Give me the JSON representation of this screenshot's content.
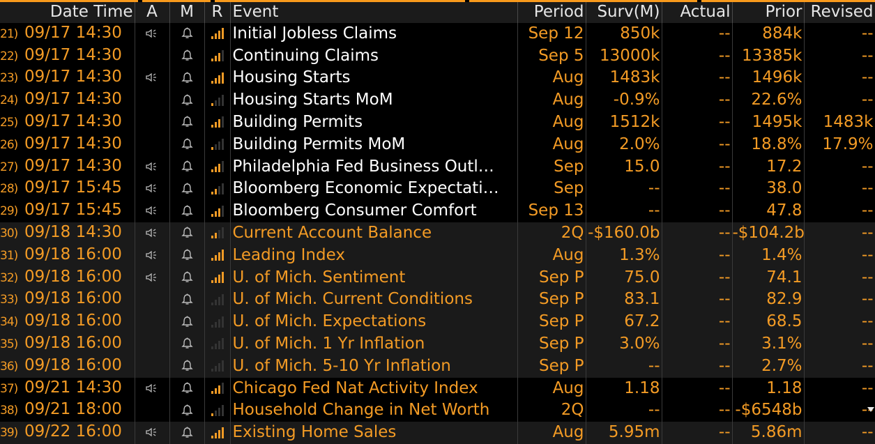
{
  "columns": [
    "Date Time",
    "A",
    "M",
    "R",
    "Event",
    "Period",
    "Surv(M)",
    "Actual",
    "Prior",
    "Revised"
  ],
  "rows": [
    {
      "idx": "21)",
      "date": "09/17 14:30",
      "alert": true,
      "rel": 4,
      "event": "Initial Jobless Claims",
      "period": "Sep 12",
      "surv": "850k",
      "actual": "--",
      "prior": "884k",
      "revised": "--",
      "group": 1
    },
    {
      "idx": "22)",
      "date": "09/17 14:30",
      "alert": false,
      "rel": 3,
      "event": "Continuing Claims",
      "period": "Sep 5",
      "surv": "13000k",
      "actual": "--",
      "prior": "13385k",
      "revised": "--",
      "group": 1
    },
    {
      "idx": "23)",
      "date": "09/17 14:30",
      "alert": true,
      "rel": 4,
      "event": "Housing Starts",
      "period": "Aug",
      "surv": "1483k",
      "actual": "--",
      "prior": "1496k",
      "revised": "--",
      "group": 1
    },
    {
      "idx": "24)",
      "date": "09/17 14:30",
      "alert": false,
      "rel": 1,
      "event": "Housing Starts MoM",
      "period": "Aug",
      "surv": "-0.9%",
      "actual": "--",
      "prior": "22.6%",
      "revised": "--",
      "group": 1
    },
    {
      "idx": "25)",
      "date": "09/17 14:30",
      "alert": false,
      "rel": 3,
      "event": "Building Permits",
      "period": "Aug",
      "surv": "1512k",
      "actual": "--",
      "prior": "1495k",
      "revised": "1483k",
      "group": 1
    },
    {
      "idx": "26)",
      "date": "09/17 14:30",
      "alert": false,
      "rel": 1,
      "event": "Building Permits MoM",
      "period": "Aug",
      "surv": "2.0%",
      "actual": "--",
      "prior": "18.8%",
      "revised": "17.9%",
      "group": 1
    },
    {
      "idx": "27)",
      "date": "09/17 14:30",
      "alert": true,
      "rel": 3,
      "event": "Philadelphia Fed Business Outl…",
      "period": "Sep",
      "surv": "15.0",
      "actual": "--",
      "prior": "17.2",
      "revised": "--",
      "group": 1
    },
    {
      "idx": "28)",
      "date": "09/17 15:45",
      "alert": true,
      "rel": 2,
      "event": "Bloomberg Economic Expectati…",
      "period": "Sep",
      "surv": "--",
      "actual": "--",
      "prior": "38.0",
      "revised": "--",
      "group": 1
    },
    {
      "idx": "29)",
      "date": "09/17 15:45",
      "alert": true,
      "rel": 3,
      "event": "Bloomberg Consumer Comfort",
      "period": "Sep 13",
      "surv": "--",
      "actual": "--",
      "prior": "47.8",
      "revised": "--",
      "group": 1
    },
    {
      "idx": "30)",
      "date": "09/18 14:30",
      "alert": true,
      "rel": 2,
      "event": "Current Account Balance",
      "period": "2Q",
      "surv": "-$160.0b",
      "actual": "--",
      "prior": "-$104.2b",
      "revised": "--",
      "group": 2
    },
    {
      "idx": "31)",
      "date": "09/18 16:00",
      "alert": true,
      "rel": 4,
      "event": "Leading Index",
      "period": "Aug",
      "surv": "1.3%",
      "actual": "--",
      "prior": "1.4%",
      "revised": "--",
      "group": 2
    },
    {
      "idx": "32)",
      "date": "09/18 16:00",
      "alert": true,
      "rel": 4,
      "event": "U. of Mich. Sentiment",
      "period": "Sep P",
      "surv": "75.0",
      "actual": "--",
      "prior": "74.1",
      "revised": "--",
      "group": 2
    },
    {
      "idx": "33)",
      "date": "09/18 16:00",
      "alert": false,
      "rel": 0,
      "event": "U. of Mich. Current Conditions",
      "period": "Sep P",
      "surv": "83.1",
      "actual": "--",
      "prior": "82.9",
      "revised": "--",
      "group": 2
    },
    {
      "idx": "34)",
      "date": "09/18 16:00",
      "alert": false,
      "rel": 0,
      "event": "U. of Mich. Expectations",
      "period": "Sep P",
      "surv": "67.2",
      "actual": "--",
      "prior": "68.5",
      "revised": "--",
      "group": 2
    },
    {
      "idx": "35)",
      "date": "09/18 16:00",
      "alert": false,
      "rel": 0,
      "event": "U. of Mich. 1 Yr Inflation",
      "period": "Sep P",
      "surv": "3.0%",
      "actual": "--",
      "prior": "3.1%",
      "revised": "--",
      "group": 2
    },
    {
      "idx": "36)",
      "date": "09/18 16:00",
      "alert": false,
      "rel": 0,
      "event": "U. of Mich. 5-10 Yr Inflation",
      "period": "Sep P",
      "surv": "--",
      "actual": "--",
      "prior": "2.7%",
      "revised": "--",
      "group": 2
    },
    {
      "idx": "37)",
      "date": "09/21 14:30",
      "alert": true,
      "rel": 3,
      "event": "Chicago Fed Nat Activity Index",
      "period": "Aug",
      "surv": "1.18",
      "actual": "--",
      "prior": "1.18",
      "revised": "--",
      "group": 3
    },
    {
      "idx": "38)",
      "date": "09/21 18:00",
      "alert": false,
      "rel": 1,
      "event": "Household Change in Net Worth",
      "period": "2Q",
      "surv": "--",
      "actual": "--",
      "prior": "-$6548b",
      "revised": "--",
      "group": 3
    },
    {
      "idx": "39)",
      "date": "09/22 16:00",
      "alert": true,
      "rel": 4,
      "event": "Existing Home Sales",
      "period": "Aug",
      "surv": "5.95m",
      "actual": "--",
      "prior": "5.86m",
      "revised": "--",
      "group": 2
    }
  ],
  "colors": {
    "accent": "#f39b25",
    "white": "#ffffff",
    "header_bg": "#1b1b1b",
    "alt_bg": "#1a1a1a"
  },
  "icons": {
    "alert": "speaker-icon",
    "monitor": "bell-icon",
    "relevance": "relevance-bars-icon"
  }
}
